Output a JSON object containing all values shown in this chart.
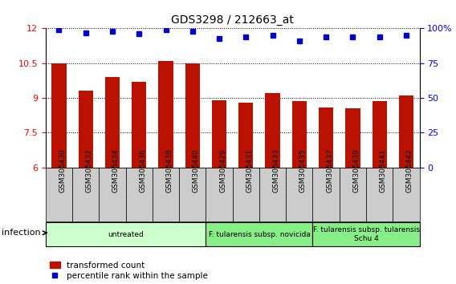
{
  "title": "GDS3298 / 212663_at",
  "samples": [
    "GSM305430",
    "GSM305432",
    "GSM305434",
    "GSM305436",
    "GSM305438",
    "GSM305440",
    "GSM305429",
    "GSM305431",
    "GSM305433",
    "GSM305435",
    "GSM305437",
    "GSM305439",
    "GSM305441",
    "GSM305442"
  ],
  "transformed_count": [
    10.5,
    9.3,
    9.9,
    9.7,
    10.6,
    10.5,
    8.9,
    8.8,
    9.2,
    8.85,
    8.6,
    8.55,
    8.85,
    9.1
  ],
  "percentile_rank": [
    99,
    97,
    98,
    96,
    99,
    98,
    93,
    94,
    95,
    91,
    94,
    94,
    94,
    95
  ],
  "bar_color": "#bb1100",
  "dot_color": "#0000cc",
  "ylim_left": [
    6,
    12
  ],
  "ylim_right": [
    0,
    100
  ],
  "yticks_left": [
    6,
    7.5,
    9,
    10.5,
    12
  ],
  "yticks_right": [
    0,
    25,
    50,
    75,
    100
  ],
  "groups": [
    {
      "label": "untreated",
      "start": 0,
      "end": 5,
      "color": "#ccffcc"
    },
    {
      "label": "F. tularensis subsp. novicida",
      "start": 6,
      "end": 9,
      "color": "#88ee88"
    },
    {
      "label": "F. tularensis subsp. tularensis\nSchu 4",
      "start": 10,
      "end": 13,
      "color": "#88ee88"
    }
  ],
  "infection_label": "infection",
  "legend_bar_label": "transformed count",
  "legend_dot_label": "percentile rank within the sample",
  "background_color": "#ffffff",
  "label_bg_color": "#cccccc",
  "plot_bg_color": "#ffffff"
}
